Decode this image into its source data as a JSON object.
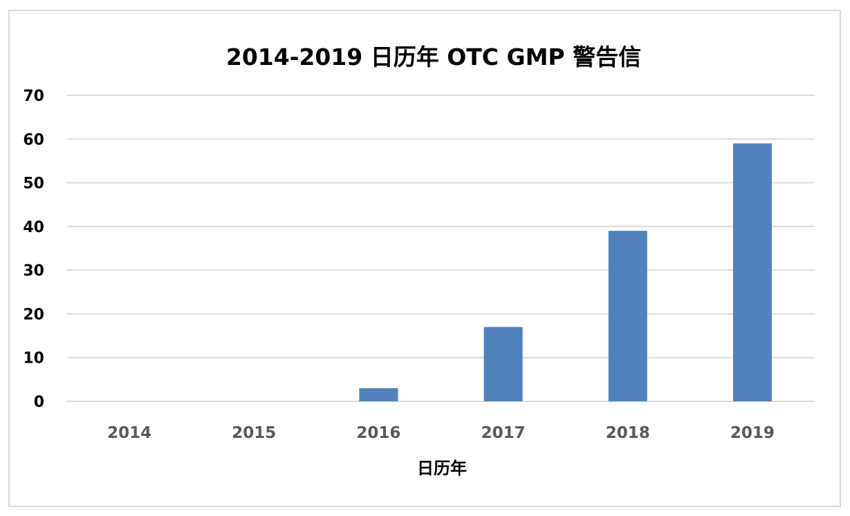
{
  "chart_data": {
    "type": "bar",
    "title": "2014-2019 日历年 OTC GMP 警告信",
    "xlabel": "日历年",
    "ylabel": "",
    "categories": [
      "2014",
      "2015",
      "2016",
      "2017",
      "2018",
      "2019"
    ],
    "values": [
      0,
      0,
      3,
      17,
      39,
      59
    ],
    "ylim": [
      0,
      70
    ],
    "yticks": [
      0,
      10,
      20,
      30,
      40,
      50,
      60,
      70
    ],
    "grid": true,
    "legend": "none",
    "bar_color": "#4f81bd"
  }
}
